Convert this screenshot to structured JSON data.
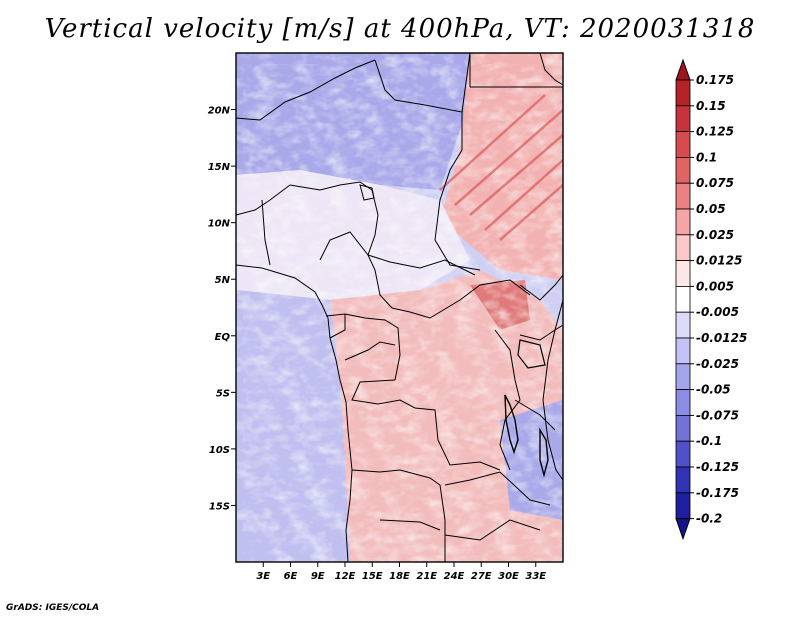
{
  "title": "Vertical velocity [m/s] at 400hPa, VT: 2020031318",
  "credit": "GrADS: IGES/COLA",
  "map": {
    "lon_range": [
      0,
      36
    ],
    "lat_range": [
      -20,
      25
    ],
    "lon_ticks": [
      "3E",
      "6E",
      "9E",
      "12E",
      "15E",
      "18E",
      "21E",
      "24E",
      "27E",
      "30E",
      "33E"
    ],
    "lon_tick_values": [
      3,
      6,
      9,
      12,
      15,
      18,
      21,
      24,
      27,
      30,
      33
    ],
    "lat_ticks": [
      "20N",
      "15N",
      "10N",
      "5N",
      "EQ",
      "5S",
      "10S",
      "15S"
    ],
    "lat_tick_values": [
      20,
      15,
      10,
      5,
      0,
      -5,
      -10,
      -15
    ]
  },
  "colorbar": {
    "labels": [
      "0.175",
      "0.15",
      "0.125",
      "0.1",
      "0.075",
      "0.05",
      "0.025",
      "0.0125",
      "0.005",
      "-0.005",
      "-0.0125",
      "-0.025",
      "-0.05",
      "-0.075",
      "-0.1",
      "-0.125",
      "-0.175",
      "-0.2"
    ],
    "colors": [
      "#a0141e",
      "#b42328",
      "#c8323c",
      "#d74b50",
      "#e06464",
      "#eb8282",
      "#f5a5a5",
      "#fac8c8",
      "#fde6e6",
      "#ffffff",
      "#dcdcfa",
      "#c3c3f5",
      "#a5a5eb",
      "#8c8ce6",
      "#7373d7",
      "#5050c8",
      "#3232b4",
      "#1e1ea0",
      "#14148c"
    ]
  }
}
